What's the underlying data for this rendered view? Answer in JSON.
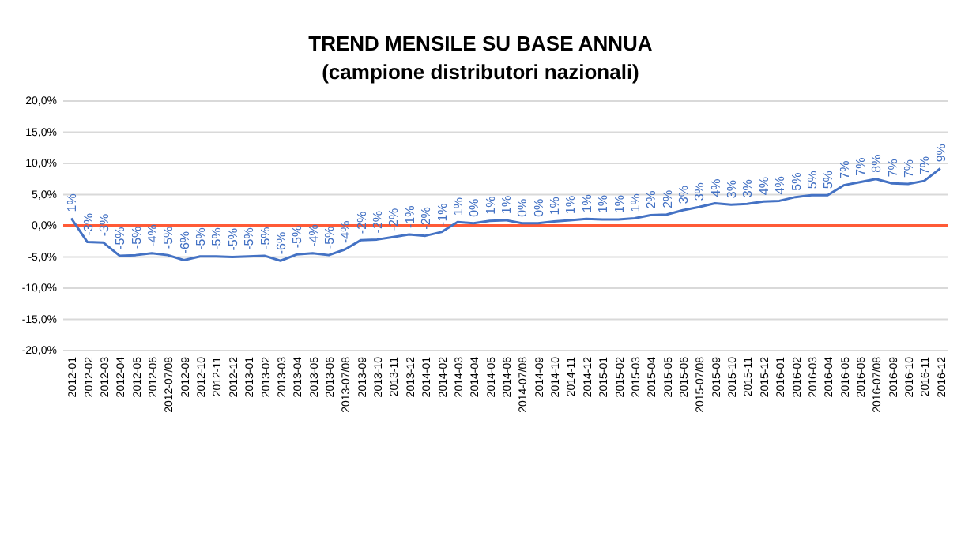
{
  "chart_data": {
    "type": "line",
    "title": "TREND MENSILE SU BASE ANNUA",
    "subtitle": "(campione distributori nazionali)",
    "categories": [
      "2012-01",
      "2012-02",
      "2012-03",
      "2012-04",
      "2012-05",
      "2012-06",
      "2012-07/08",
      "2012-09",
      "2012-10",
      "2012-11",
      "2012-12",
      "2013-01",
      "2013-02",
      "2013-03",
      "2013-04",
      "2013-05",
      "2013-06",
      "2013-07/08",
      "2013-09",
      "2013-10",
      "2013-11",
      "2013-12",
      "2014-01",
      "2014-02",
      "2014-03",
      "2014-04",
      "2014-05",
      "2014-06",
      "2014-07/08",
      "2014-09",
      "2014-10",
      "2014-11",
      "2014-12",
      "2015-01",
      "2015-02",
      "2015-03",
      "2015-04",
      "2015-05",
      "2015-06",
      "2015-07/08",
      "2015-09",
      "2015-10",
      "2015-11",
      "2015-12",
      "2016-01",
      "2016-02",
      "2016-03",
      "2016-04",
      "2016-05",
      "2016-06",
      "2016-07/08",
      "2016-09",
      "2016-10",
      "2016-11",
      "2016-12"
    ],
    "series": [
      {
        "color": "#4472c4",
        "values": [
          1.2,
          -2.6,
          -2.7,
          -4.8,
          -4.7,
          -4.4,
          -4.7,
          -5.5,
          -4.9,
          -4.9,
          -5.0,
          -4.9,
          -4.8,
          -5.6,
          -4.6,
          -4.4,
          -4.7,
          -3.8,
          -2.3,
          -2.2,
          -1.8,
          -1.4,
          -1.6,
          -1.0,
          0.6,
          0.4,
          0.8,
          0.9,
          0.4,
          0.4,
          0.7,
          0.9,
          1.1,
          1.0,
          1.0,
          1.2,
          1.7,
          1.8,
          2.5,
          3.0,
          3.6,
          3.4,
          3.5,
          3.9,
          4.0,
          4.6,
          4.9,
          4.9,
          6.5,
          7.0,
          7.5,
          6.8,
          6.7,
          7.2,
          9.2
        ],
        "value_labels": [
          "1%",
          "-3%",
          "-3%",
          "-5%",
          "-5%",
          "-4%",
          "-5%",
          "-6%",
          "-5%",
          "-5%",
          "-5%",
          "-5%",
          "-5%",
          "-6%",
          "-5%",
          "-4%",
          "-5%",
          "-4%",
          "-2%",
          "-2%",
          "-2%",
          "-1%",
          "-2%",
          "-1%",
          "1%",
          "0%",
          "1%",
          "1%",
          "0%",
          "0%",
          "1%",
          "1%",
          "1%",
          "1%",
          "1%",
          "1%",
          "2%",
          "2%",
          "3%",
          "3%",
          "4%",
          "3%",
          "3%",
          "4%",
          "4%",
          "5%",
          "5%",
          "5%",
          "7%",
          "7%",
          "8%",
          "7%",
          "7%",
          "7%",
          "9%"
        ]
      }
    ],
    "ylim": [
      -20,
      20
    ],
    "yticks": [
      {
        "value": -20,
        "label": "-20,0%"
      },
      {
        "value": -15,
        "label": "-15,0%"
      },
      {
        "value": -10,
        "label": "-10,0%"
      },
      {
        "value": -5,
        "label": "-5,0%"
      },
      {
        "value": 0,
        "label": "0,0%"
      },
      {
        "value": 5,
        "label": "5,0%"
      },
      {
        "value": 10,
        "label": "10,0%"
      },
      {
        "value": 15,
        "label": "15,0%"
      },
      {
        "value": 20,
        "label": "20,0%"
      }
    ],
    "grid": "y",
    "marker": "none",
    "line_style": "solid",
    "ref_lines": [
      {
        "axis": "y",
        "value": 0,
        "color": "#ff5a36"
      }
    ]
  }
}
